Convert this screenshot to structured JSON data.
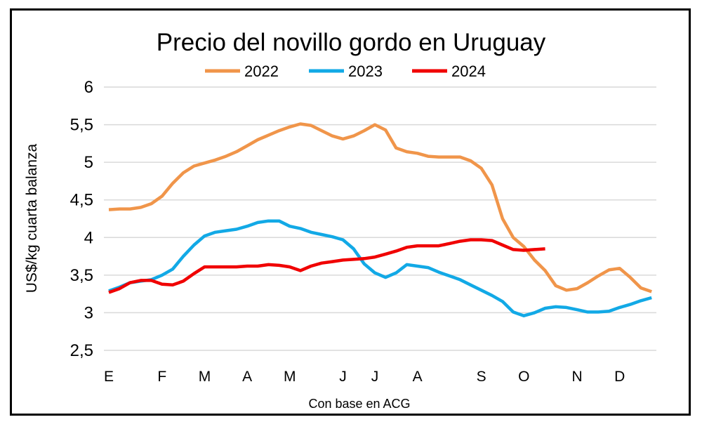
{
  "chart_data": {
    "type": "line",
    "title": "Precio del novillo gordo en Uruguay",
    "xlabel": "Con base en ACG",
    "ylabel": "US$/kg cuarta balanza",
    "ylim": [
      2.5,
      6
    ],
    "yticks": [
      "2,5",
      "3",
      "3,5",
      "4",
      "4,5",
      "5",
      "5,5",
      "6"
    ],
    "ytick_values": [
      2.5,
      3,
      3.5,
      4,
      4.5,
      5,
      5.5,
      6
    ],
    "grid": true,
    "legend_placement": "top",
    "x_ticks": [
      {
        "label": "E",
        "week": 0
      },
      {
        "label": "F",
        "week": 5
      },
      {
        "label": "M",
        "week": 9
      },
      {
        "label": "A",
        "week": 13
      },
      {
        "label": "M",
        "week": 17
      },
      {
        "label": "J",
        "week": 22
      },
      {
        "label": "J",
        "week": 25
      },
      {
        "label": "A",
        "week": 29
      },
      {
        "label": "S",
        "week": 35
      },
      {
        "label": "O",
        "week": 39
      },
      {
        "label": "N",
        "week": 44
      },
      {
        "label": "D",
        "week": 48
      }
    ],
    "series": [
      {
        "name": "2022",
        "color": "#F0954A",
        "values": [
          4.37,
          4.38,
          4.38,
          4.4,
          4.45,
          4.55,
          4.72,
          4.86,
          4.95,
          4.99,
          5.03,
          5.08,
          5.14,
          5.22,
          5.3,
          5.36,
          5.42,
          5.47,
          5.51,
          5.49,
          5.42,
          5.35,
          5.31,
          5.35,
          5.42,
          5.5,
          5.43,
          5.19,
          5.14,
          5.12,
          5.08,
          5.07,
          5.07,
          5.07,
          5.02,
          4.92,
          4.7,
          4.25,
          4.0,
          3.88,
          3.7,
          3.56,
          3.36,
          3.3,
          3.32,
          3.4,
          3.49,
          3.57,
          3.59,
          3.47,
          3.33,
          3.28
        ]
      },
      {
        "name": "2023",
        "color": "#12A9E6",
        "values": [
          3.29,
          3.34,
          3.4,
          3.42,
          3.44,
          3.5,
          3.58,
          3.75,
          3.9,
          4.02,
          4.07,
          4.09,
          4.11,
          4.15,
          4.2,
          4.22,
          4.22,
          4.15,
          4.12,
          4.07,
          4.04,
          4.01,
          3.97,
          3.85,
          3.65,
          3.53,
          3.47,
          3.53,
          3.64,
          3.62,
          3.6,
          3.54,
          3.49,
          3.44,
          3.37,
          3.3,
          3.23,
          3.15,
          3.01,
          2.96,
          3.0,
          3.06,
          3.08,
          3.07,
          3.04,
          3.01,
          3.01,
          3.02,
          3.07,
          3.11,
          3.16,
          3.2
        ]
      },
      {
        "name": "2024",
        "color": "#F00000",
        "values": [
          3.27,
          3.32,
          3.4,
          3.43,
          3.43,
          3.38,
          3.37,
          3.42,
          3.52,
          3.61,
          3.61,
          3.61,
          3.61,
          3.62,
          3.62,
          3.64,
          3.63,
          3.61,
          3.56,
          3.62,
          3.66,
          3.68,
          3.7,
          3.71,
          3.72,
          3.74,
          3.78,
          3.82,
          3.87,
          3.89,
          3.89,
          3.89,
          3.92,
          3.95,
          3.97,
          3.97,
          3.96,
          3.9,
          3.84,
          3.83,
          3.84,
          3.85
        ]
      }
    ]
  }
}
